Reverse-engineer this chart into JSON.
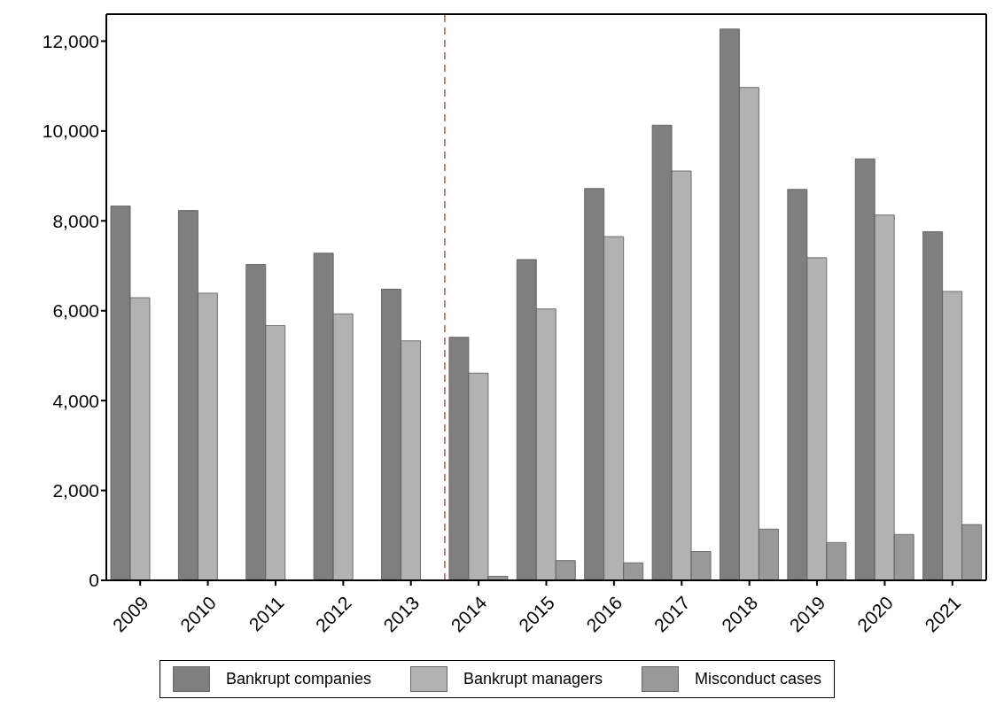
{
  "chart_data": {
    "type": "bar",
    "x": [
      2009,
      2010,
      2011,
      2012,
      2013,
      2014,
      2015,
      2016,
      2017,
      2018,
      2019,
      2020,
      2021
    ],
    "xlim": [
      2008.5,
      2021.5
    ],
    "xticks": [
      2009,
      2010,
      2011,
      2012,
      2013,
      2014,
      2015,
      2016,
      2017,
      2018,
      2019,
      2020,
      2021
    ],
    "ylim": [
      0,
      12600
    ],
    "yticks": [
      0,
      {
        "value": 2000,
        "label": "2,000"
      },
      {
        "value": 4000,
        "label": "4,000"
      },
      {
        "value": 6000,
        "label": "6,000"
      },
      {
        "value": 8000,
        "label": "8,000"
      },
      {
        "value": 10000,
        "label": "10,000"
      },
      {
        "value": 12000,
        "label": "12,000"
      }
    ],
    "series": [
      {
        "name": "Bankrupt companies",
        "color": "#7f7f7f",
        "values": [
          8330,
          8230,
          7030,
          7280,
          6480,
          5410,
          7140,
          8720,
          10130,
          12270,
          8700,
          9380,
          7760
        ]
      },
      {
        "name": "Bankrupt managers",
        "color": "#b2b2b2",
        "values": [
          6290,
          6390,
          5670,
          5930,
          5330,
          4610,
          6040,
          7650,
          9110,
          10970,
          7180,
          8130,
          6430
        ]
      },
      {
        "name": "Misconduct cases",
        "color": "#999999",
        "values": [
          null,
          null,
          null,
          null,
          null,
          90,
          440,
          390,
          640,
          1140,
          840,
          1020,
          1240
        ]
      }
    ],
    "ref_lines": [
      {
        "axis": "x",
        "value": 2013.5,
        "color": "#b0525a",
        "line_style": "dashed"
      }
    ],
    "legend": "bottom"
  }
}
